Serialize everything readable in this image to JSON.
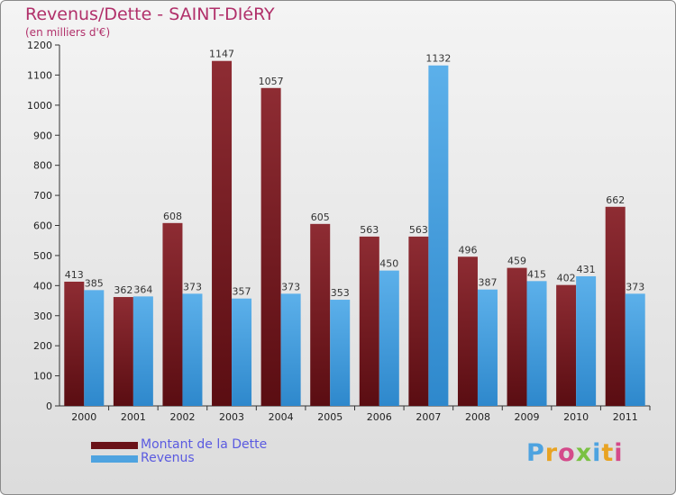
{
  "title": "Revenus/Dette - SAINT-DIéRY",
  "subtitle": "(en milliers d'€)",
  "colors": {
    "title": "#b1306a",
    "dette": "#7a1c22",
    "revenus": "#4ea3e0",
    "legend_text": "#5a5ae0"
  },
  "legend": {
    "dette_label": "Montant de la Dette",
    "revenus_label": "Revenus"
  },
  "logo": {
    "text": "Proxiti"
  },
  "chart_data": {
    "type": "bar",
    "title": "Revenus/Dette - SAINT-DIéRY",
    "ylabel": "(en milliers d'€)",
    "xlabel": "",
    "ylim": [
      0,
      1200
    ],
    "yticks": [
      0,
      100,
      200,
      300,
      400,
      500,
      600,
      700,
      800,
      900,
      1000,
      1100,
      1200
    ],
    "categories": [
      "2000",
      "2001",
      "2002",
      "2003",
      "2004",
      "2005",
      "2006",
      "2007",
      "2008",
      "2009",
      "2010",
      "2011"
    ],
    "series": [
      {
        "name": "Montant de la Dette",
        "values": [
          413,
          362,
          608,
          1147,
          1057,
          605,
          563,
          563,
          496,
          459,
          402,
          662
        ]
      },
      {
        "name": "Revenus",
        "values": [
          385,
          364,
          373,
          357,
          373,
          353,
          450,
          1132,
          387,
          415,
          431,
          373
        ]
      }
    ],
    "grid": false,
    "legend_position": "bottom-left"
  }
}
